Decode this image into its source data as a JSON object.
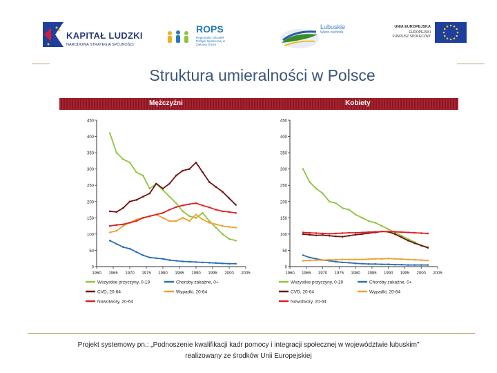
{
  "logos": {
    "kapital": {
      "title": "KAPITAŁ LUDZKI",
      "subtitle": "NARODOWA STRATEGIA SPÓJNOŚCI"
    },
    "rops": {
      "title": "ROPS",
      "subtitle": "Regionalny Ośrodek Polityki Społecznej w Zielonej Górze"
    },
    "lubuskie": {
      "title": "Lubuskie",
      "subtitle": "Warte zachodu"
    },
    "ue": {
      "title": "UNIA EUROPEJSKA",
      "subtitle_1": "EUROPEJSKI",
      "subtitle_2": "FUNDUSZ SPOŁECZNY"
    }
  },
  "slide": {
    "title": "Struktura umieralności w Polsce",
    "footer_line1": "Projekt systemowy pn.: „Podnoszenie kwalifikacji kadr pomocy i integracji społecznej w województwie lubuskim”",
    "footer_line2": "realizowany ze środków Unii Europejskiej"
  },
  "colors": {
    "all_causes": "#8fc43c",
    "cvd": "#6e1010",
    "cancer": "#e02020",
    "infectious": "#2a6eb8",
    "accidents": "#f0a030"
  },
  "chart_data": [
    {
      "type": "line",
      "title": "Mężczyźni",
      "xlabel": "",
      "ylabel": "",
      "xlim": [
        1960,
        2005
      ],
      "ylim": [
        0,
        450
      ],
      "xticks": [
        1960,
        1965,
        1970,
        1975,
        1980,
        1985,
        1990,
        1995,
        2000,
        2005
      ],
      "yticks": [
        0,
        50,
        100,
        150,
        200,
        250,
        300,
        350,
        400,
        450
      ],
      "x": [
        1964,
        1966,
        1968,
        1970,
        1972,
        1974,
        1976,
        1978,
        1980,
        1982,
        1984,
        1986,
        1988,
        1990,
        1992,
        1994,
        1996,
        1998,
        2000,
        2002
      ],
      "series": [
        {
          "name": "Wszystkie przyczyny, 0-19",
          "color_key": "all_causes",
          "values": [
            410,
            350,
            330,
            320,
            290,
            280,
            240,
            255,
            235,
            215,
            195,
            170,
            155,
            150,
            165,
            140,
            120,
            100,
            85,
            80
          ]
        },
        {
          "name": "Choroby zakaźne, 0+",
          "color_key": "infectious",
          "values": [
            80,
            70,
            60,
            55,
            45,
            35,
            28,
            26,
            24,
            20,
            18,
            16,
            15,
            14,
            13,
            12,
            11,
            10,
            9,
            9
          ]
        },
        {
          "name": "CVD, 20-64",
          "color_key": "cvd",
          "values": [
            170,
            168,
            180,
            200,
            205,
            215,
            225,
            255,
            240,
            255,
            280,
            295,
            300,
            320,
            290,
            260,
            245,
            230,
            210,
            190
          ]
        },
        {
          "name": "Wypadki, 20-64",
          "color_key": "accidents",
          "values": [
            105,
            110,
            125,
            135,
            145,
            150,
            155,
            160,
            150,
            140,
            140,
            150,
            140,
            160,
            145,
            135,
            130,
            125,
            122,
            120
          ]
        },
        {
          "name": "Nowotwory, 20-64",
          "color_key": "cancer",
          "values": [
            125,
            128,
            130,
            135,
            140,
            150,
            155,
            160,
            165,
            175,
            183,
            188,
            192,
            195,
            188,
            182,
            175,
            170,
            168,
            165
          ]
        }
      ],
      "legend": "bottom"
    },
    {
      "type": "line",
      "title": "Kobiety",
      "xlabel": "",
      "ylabel": "",
      "xlim": [
        1960,
        2005
      ],
      "ylim": [
        0,
        450
      ],
      "xticks": [
        1960,
        1965,
        1970,
        1975,
        1980,
        1985,
        1990,
        1995,
        2000,
        2005
      ],
      "yticks": [
        0,
        50,
        100,
        150,
        200,
        250,
        300,
        350,
        400,
        450
      ],
      "x": [
        1964,
        1966,
        1968,
        1970,
        1972,
        1974,
        1976,
        1978,
        1980,
        1982,
        1984,
        1986,
        1988,
        1990,
        1992,
        1994,
        1996,
        1998,
        2000,
        2002
      ],
      "series": [
        {
          "name": "Wszystkie przyczyny, 0-19",
          "color_key": "all_causes",
          "values": [
            300,
            260,
            240,
            225,
            200,
            195,
            180,
            175,
            160,
            150,
            140,
            135,
            125,
            115,
            105,
            95,
            85,
            75,
            65,
            60
          ]
        },
        {
          "name": "Choroby zakaźne, 0+",
          "color_key": "infectious",
          "values": [
            35,
            28,
            24,
            20,
            18,
            15,
            13,
            12,
            10,
            9,
            8,
            8,
            7,
            7,
            6,
            6,
            5,
            5,
            5,
            5
          ]
        },
        {
          "name": "CVD, 20-64",
          "color_key": "cvd",
          "values": [
            100,
            98,
            96,
            97,
            95,
            93,
            92,
            95,
            98,
            100,
            103,
            105,
            108,
            107,
            100,
            90,
            80,
            72,
            65,
            58
          ]
        },
        {
          "name": "Wypadki, 20-64",
          "color_key": "accidents",
          "values": [
            18,
            19,
            20,
            20,
            21,
            21,
            22,
            22,
            22,
            22,
            23,
            24,
            24,
            25,
            24,
            23,
            22,
            21,
            20,
            19
          ]
        },
        {
          "name": "Nowotwory, 20-64",
          "color_key": "cancer",
          "values": [
            105,
            104,
            103,
            102,
            101,
            102,
            103,
            104,
            104,
            105,
            106,
            107,
            108,
            108,
            107,
            106,
            105,
            104,
            103,
            102
          ]
        }
      ],
      "legend": "bottom"
    }
  ]
}
